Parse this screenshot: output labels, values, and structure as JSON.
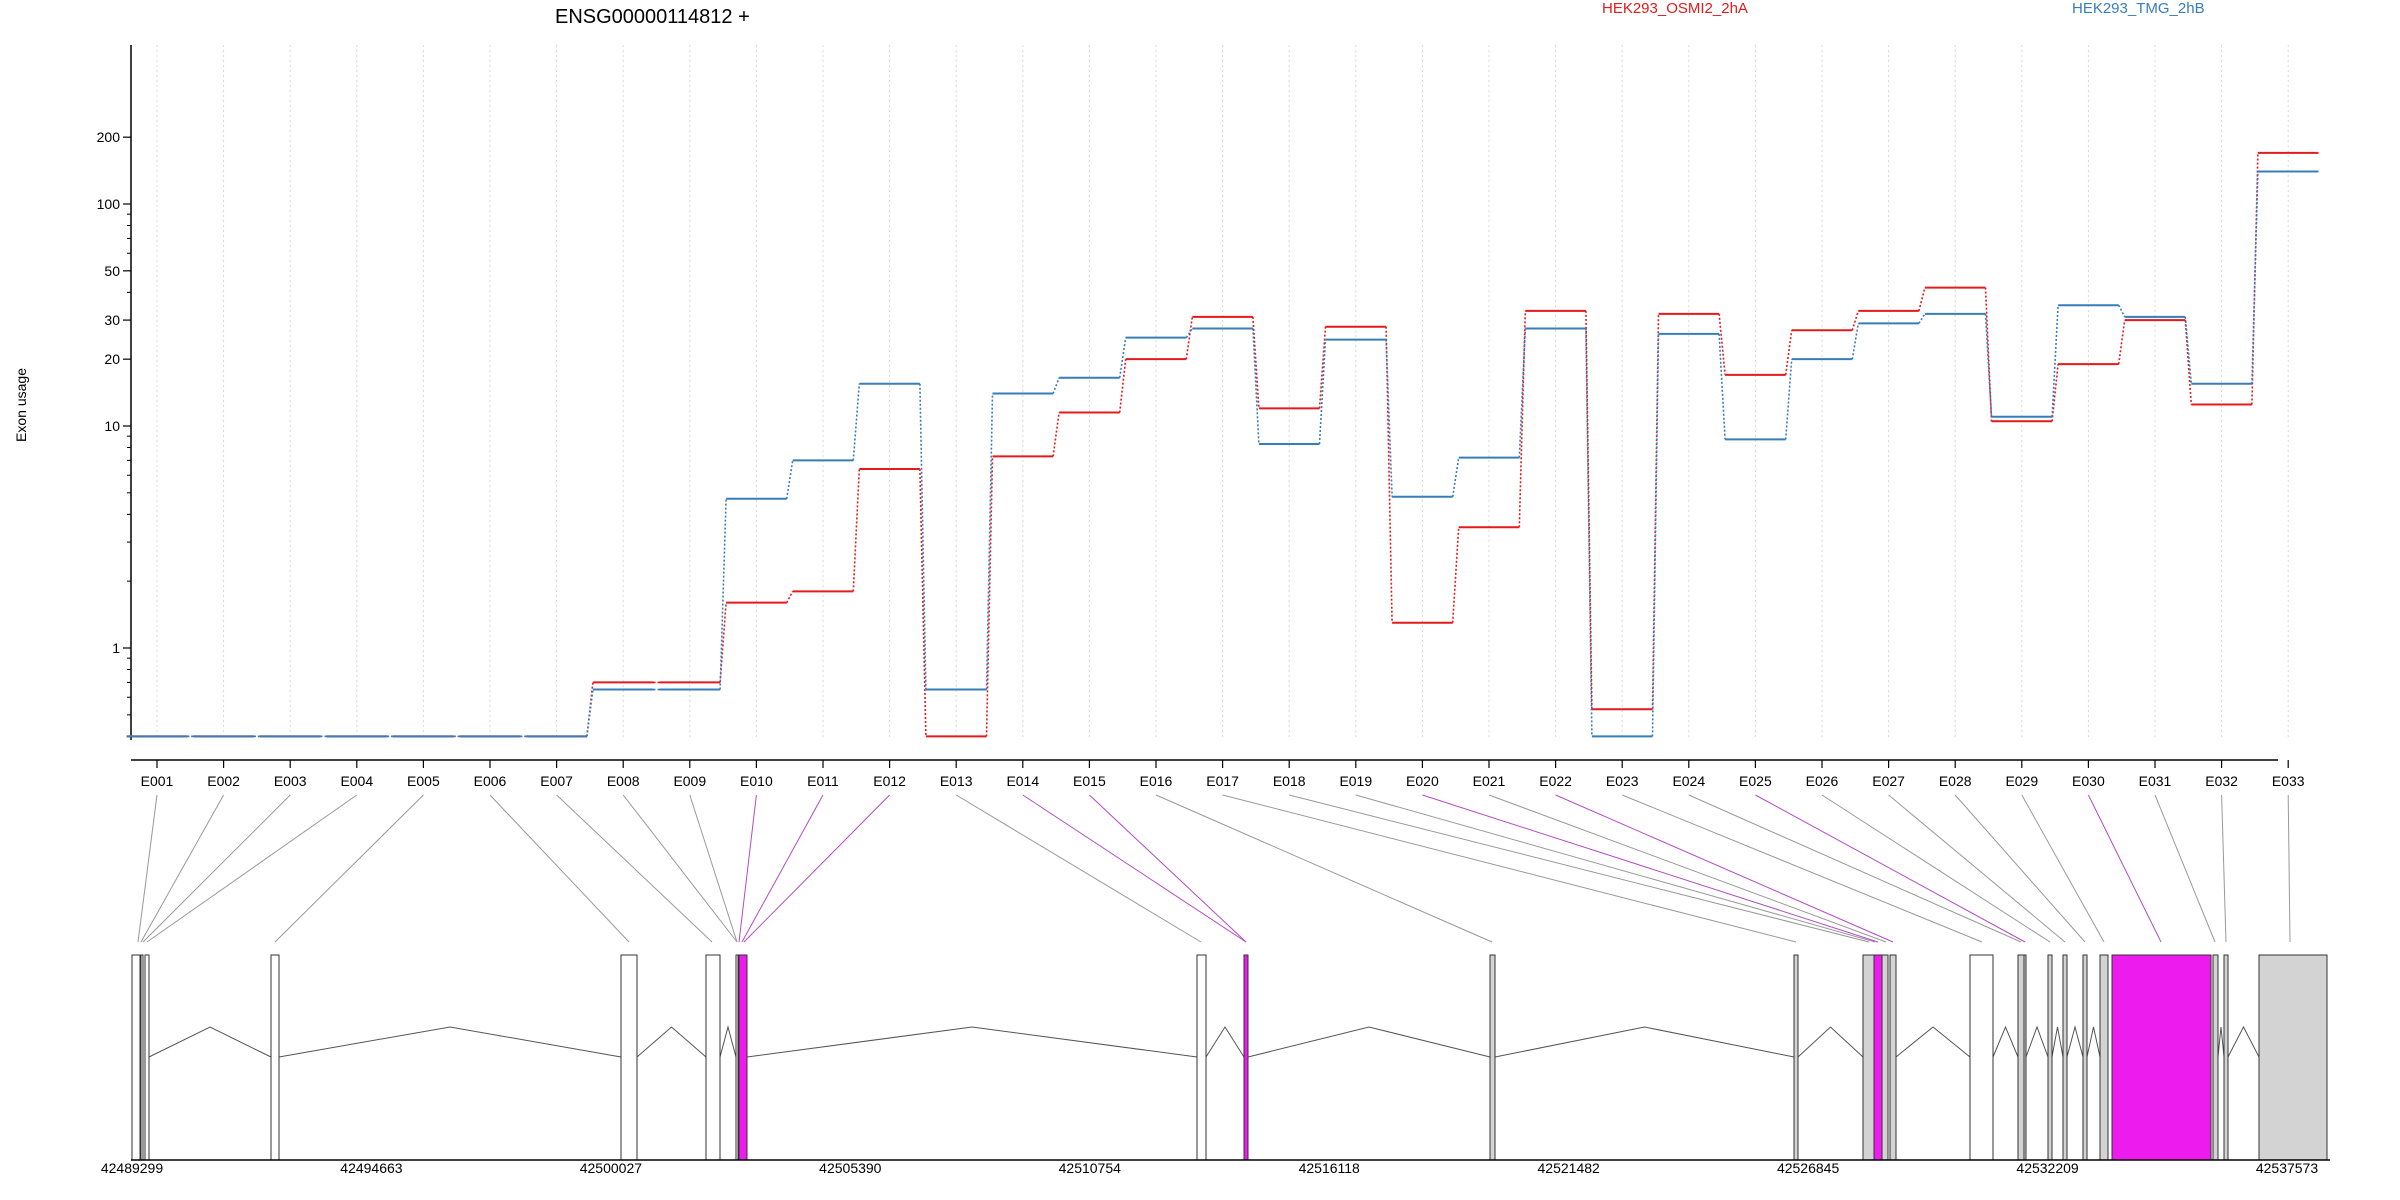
{
  "chart_data": {
    "type": "line",
    "title": "ENSG00000114812 +",
    "ylabel": "Exon usage",
    "xlabel": "",
    "y_scale": "log",
    "ylim": [
      0.4,
      200
    ],
    "y_ticks": [
      {
        "value": 1,
        "label": "1"
      },
      {
        "value": 10,
        "label": "10"
      },
      {
        "value": 20,
        "label": "20"
      },
      {
        "value": 30,
        "label": "30"
      },
      {
        "value": 50,
        "label": "50"
      },
      {
        "value": 100,
        "label": "100"
      },
      {
        "value": 200,
        "label": "200"
      }
    ],
    "grid": "vertical dotted at exon centers",
    "legend_placement": "top-right",
    "categories": [
      "E001",
      "E002",
      "E003",
      "E004",
      "E005",
      "E006",
      "E007",
      "E008",
      "E009",
      "E010",
      "E011",
      "E012",
      "E013",
      "E014",
      "E015",
      "E016",
      "E017",
      "E018",
      "E019",
      "E020",
      "E021",
      "E022",
      "E023",
      "E024",
      "E025",
      "E026",
      "E027",
      "E028",
      "E029",
      "E030",
      "E031",
      "E032",
      "E033"
    ],
    "series": [
      {
        "name": "HEK293_OSMI2_2hA",
        "color": "#e41a1c",
        "values": [
          0.4,
          0.4,
          0.4,
          0.4,
          0.4,
          0.4,
          0.4,
          0.7,
          0.7,
          1.6,
          1.8,
          6.4,
          0.4,
          7.3,
          11.5,
          20.0,
          31.0,
          12.0,
          28.0,
          1.3,
          3.5,
          33.0,
          0.53,
          32.0,
          17.0,
          27.0,
          33.0,
          42.0,
          10.5,
          19.0,
          30.0,
          12.5,
          170.0
        ]
      },
      {
        "name": "HEK293_TMG_2hB",
        "color": "#377eb8",
        "values": [
          0.4,
          0.4,
          0.4,
          0.4,
          0.4,
          0.4,
          0.4,
          0.65,
          0.65,
          4.7,
          7.0,
          15.5,
          0.65,
          14.0,
          16.5,
          25.0,
          27.5,
          8.3,
          24.5,
          4.8,
          7.2,
          27.5,
          0.4,
          26.0,
          8.7,
          20.0,
          29.0,
          32.0,
          11.0,
          35.0,
          31.0,
          15.5,
          140.0
        ]
      }
    ],
    "gene_model": {
      "coordinate_ticks": [
        "42489299",
        "42494663",
        "42500027",
        "42505390",
        "42510754",
        "42516118",
        "42521482",
        "42526845",
        "42532209",
        "42537573"
      ],
      "colors": {
        "highlighted_exon": "#ee1bee",
        "other_exon": "#d3d3d3",
        "unexpressed_exon": "#ffffff"
      }
    }
  }
}
